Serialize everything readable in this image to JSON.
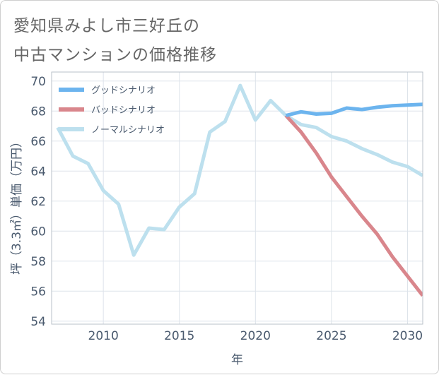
{
  "title": {
    "line1": "愛知県みよし市三好丘の",
    "line2": "中古マンションの価格推移"
  },
  "chart_data": {
    "type": "line",
    "xlabel": "年",
    "ylabel": "坪（3.3㎡）単価（万円）",
    "xlim": [
      2006.6,
      2031
    ],
    "ylim": [
      53.8,
      70.6
    ],
    "xticks": [
      2010,
      2015,
      2020,
      2025,
      2030
    ],
    "yticks": [
      54,
      56,
      58,
      60,
      62,
      64,
      66,
      68,
      70
    ],
    "grid": true,
    "legend_position": "top-left",
    "series": [
      {
        "name": "グッドシナリオ",
        "color": "#6cb4ee",
        "x": [
          2022,
          2023,
          2024,
          2025,
          2026,
          2027,
          2028,
          2029,
          2030,
          2031
        ],
        "y": [
          67.7,
          67.95,
          67.8,
          67.85,
          68.2,
          68.1,
          68.25,
          68.35,
          68.4,
          68.45
        ]
      },
      {
        "name": "バッドシナリオ",
        "color": "#d9868c",
        "x": [
          2022,
          2023,
          2024,
          2025,
          2026,
          2027,
          2028,
          2029,
          2030,
          2031
        ],
        "y": [
          67.7,
          66.6,
          65.2,
          63.6,
          62.3,
          61.0,
          59.8,
          58.3,
          57.0,
          55.7
        ]
      },
      {
        "name": "ノーマルシナリオ",
        "color": "#bde0ee",
        "x": [
          2007,
          2008,
          2009,
          2010,
          2011,
          2012,
          2013,
          2014,
          2015,
          2016,
          2017,
          2018,
          2019,
          2020,
          2021,
          2022,
          2023,
          2024,
          2025,
          2026,
          2027,
          2028,
          2029,
          2030,
          2031
        ],
        "y": [
          66.9,
          65.0,
          64.5,
          62.7,
          61.8,
          58.4,
          60.2,
          60.1,
          61.6,
          62.5,
          66.6,
          67.3,
          69.7,
          67.4,
          68.7,
          67.7,
          67.1,
          66.9,
          66.3,
          66.0,
          65.5,
          65.1,
          64.6,
          64.3,
          63.7
        ]
      }
    ]
  }
}
